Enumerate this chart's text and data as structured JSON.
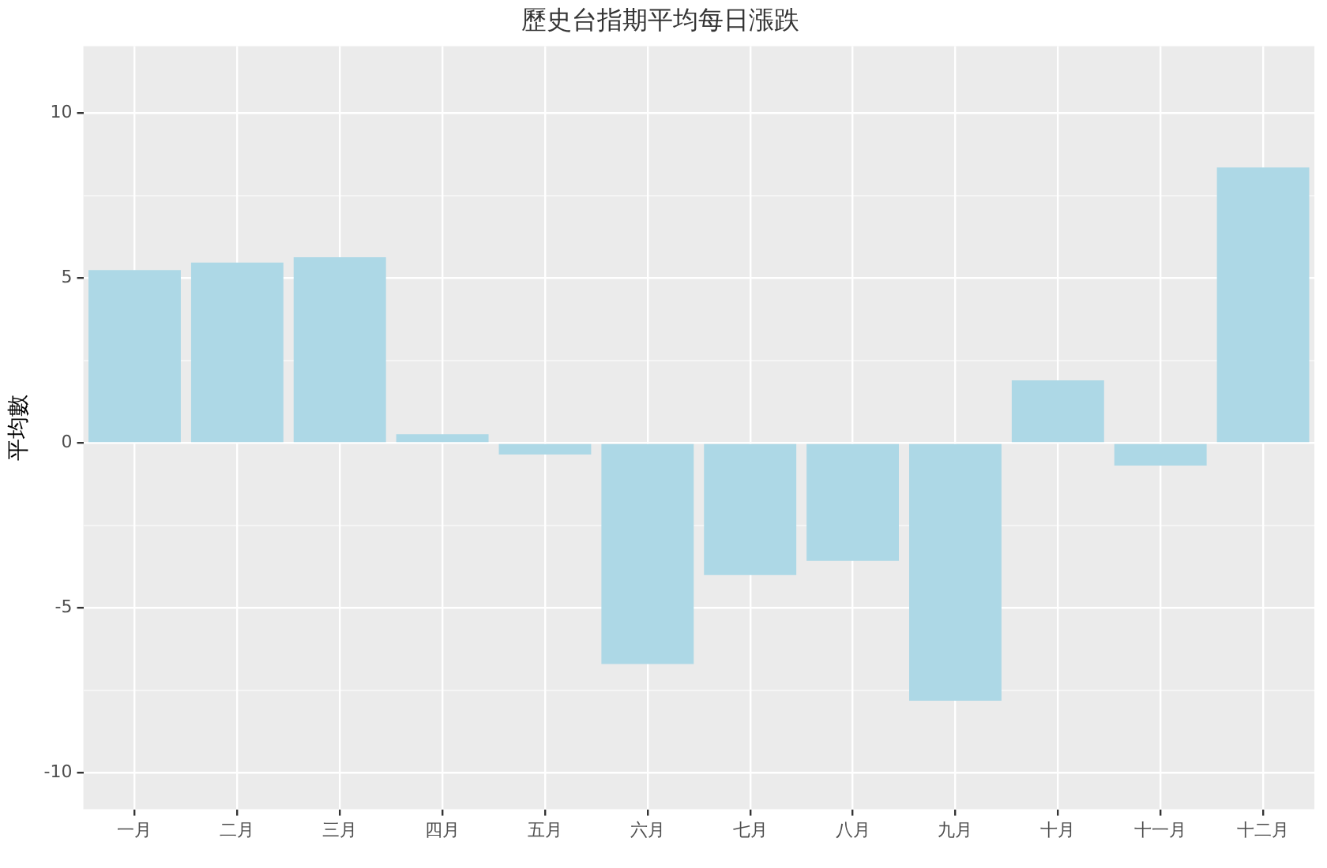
{
  "chart_data": {
    "type": "bar",
    "title": "歷史台指期平均每日漲跌",
    "ylabel": "平均數",
    "categories": [
      "一月",
      "二月",
      "三月",
      "四月",
      "五月",
      "六月",
      "七月",
      "八月",
      "九月",
      "十月",
      "十一月",
      "十二月"
    ],
    "values": [
      5.24,
      5.47,
      5.63,
      0.27,
      -0.35,
      -6.7,
      -4.0,
      -3.57,
      -7.81,
      1.9,
      -0.68,
      8.35
    ],
    "color": "#add8e6",
    "ylim": [
      -11.1,
      12.03
    ],
    "yticks": [
      -10,
      {
        "value": -7.5,
        "label": null
      },
      -5,
      {
        "value": -2.5,
        "label": null
      },
      0,
      {
        "value": 2.5,
        "label": null
      },
      5,
      {
        "value": 7.5,
        "label": null
      },
      10
    ],
    "grid": true
  }
}
